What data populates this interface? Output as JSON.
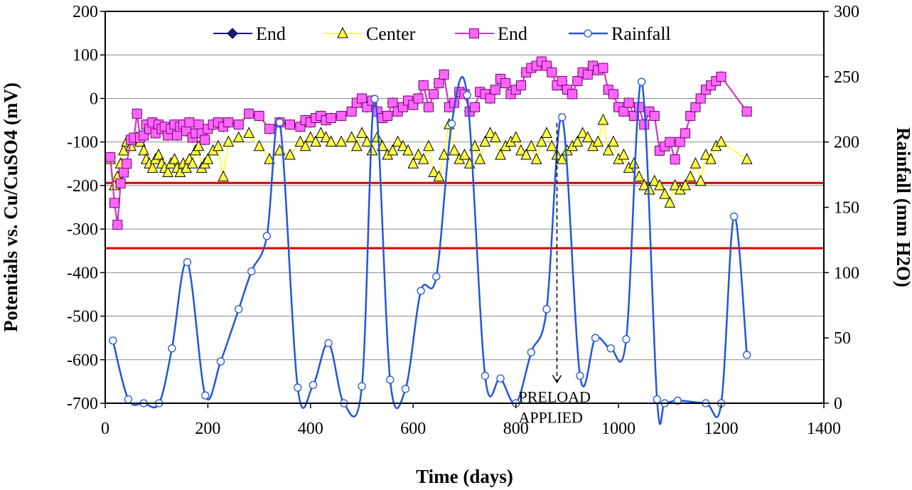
{
  "chart_data": {
    "type": "line",
    "title": "",
    "xlabel": "Time (days)",
    "ylabel_left": "Potentials vs. Cu/CuSO4 (mV)",
    "ylabel_right": "Rainfall (mm H2O)",
    "xlim": [
      0,
      1400
    ],
    "xticks": [
      0,
      200,
      400,
      600,
      800,
      1000,
      1200,
      1400
    ],
    "ylim_left": [
      -700,
      200
    ],
    "yticks_left": [
      200,
      100,
      0,
      -100,
      -200,
      -300,
      -400,
      -500,
      -600,
      -700
    ],
    "ylim_right": [
      0,
      300
    ],
    "yticks_right": [
      300,
      250,
      200,
      150,
      100,
      50,
      0
    ],
    "grid": "horizontal",
    "legend_position": "top",
    "reference_lines_mV": [
      -194,
      -344
    ],
    "colors": {
      "end1": "#1c1c7a",
      "center": "#ffff44",
      "end2": "#e030d0",
      "end2_fill": "#ff66ff",
      "rainfall": "#2255dd",
      "reference": "#dd0000"
    },
    "annotation": {
      "line1": "PRELOAD",
      "line2": "APPLIED",
      "x": 880,
      "from_rain_mm": 219,
      "to_rain_mm": 16
    },
    "series": [
      {
        "name": "End",
        "axis": "left",
        "marker": "diamond",
        "x": [
          10,
          18,
          24,
          30,
          36,
          42,
          50,
          56,
          62,
          68,
          75,
          80,
          86,
          92,
          98,
          104,
          110,
          116,
          122,
          128,
          135,
          140,
          146,
          152,
          158,
          164,
          170,
          176,
          182,
          188,
          194,
          200,
          210,
          220,
          230,
          240,
          260,
          280,
          300,
          320,
          340,
          360,
          380,
          390,
          400,
          410,
          420,
          430,
          440,
          460,
          480,
          490,
          500,
          510,
          520,
          530,
          540,
          550,
          560,
          570,
          580,
          590,
          600,
          610,
          620,
          630,
          640,
          650,
          660,
          670,
          680,
          690,
          700,
          710,
          720,
          730,
          740,
          750,
          760,
          770,
          780,
          790,
          800,
          810,
          820,
          830,
          840,
          850,
          860,
          870,
          880,
          890,
          900,
          910,
          920,
          930,
          940,
          950,
          960,
          970,
          980,
          990,
          1000,
          1010,
          1020,
          1030,
          1040,
          1050,
          1060,
          1070,
          1080,
          1090,
          1100,
          1110,
          1120,
          1130,
          1140,
          1150,
          1160,
          1170,
          1180,
          1190,
          1200,
          1250
        ],
        "values": [
          -135,
          -240,
          -290,
          -195,
          -170,
          -150,
          -95,
          -90,
          -35,
          -90,
          -85,
          -60,
          -70,
          -55,
          -80,
          -60,
          -70,
          -65,
          -85,
          -70,
          -60,
          -85,
          -65,
          -60,
          -75,
          -55,
          -90,
          -80,
          -60,
          -80,
          -95,
          -70,
          -60,
          -55,
          -65,
          -55,
          -60,
          -35,
          -40,
          -70,
          -55,
          -60,
          -65,
          -50,
          -55,
          -45,
          -40,
          -50,
          -45,
          -40,
          -30,
          -10,
          0,
          -20,
          -5,
          -30,
          -45,
          -40,
          -10,
          -30,
          -20,
          -5,
          -15,
          0,
          30,
          -20,
          10,
          35,
          55,
          -20,
          -10,
          15,
          10,
          -30,
          -20,
          15,
          10,
          0,
          20,
          45,
          35,
          10,
          20,
          30,
          60,
          70,
          75,
          85,
          75,
          60,
          30,
          40,
          20,
          10,
          40,
          60,
          55,
          75,
          65,
          70,
          20,
          10,
          -20,
          -30,
          -10,
          -40,
          -20,
          -60,
          -30,
          -40,
          -120,
          -110,
          -100,
          -140,
          -100,
          -80,
          -40,
          -20,
          0,
          20,
          30,
          40,
          50,
          -30
        ]
      },
      {
        "name": "Center",
        "axis": "left",
        "marker": "triangle",
        "x": [
          10,
          18,
          24,
          30,
          36,
          42,
          50,
          56,
          62,
          68,
          75,
          80,
          86,
          92,
          98,
          104,
          110,
          116,
          122,
          128,
          135,
          140,
          146,
          152,
          158,
          164,
          170,
          176,
          182,
          188,
          194,
          200,
          210,
          220,
          230,
          240,
          260,
          280,
          300,
          320,
          340,
          360,
          380,
          390,
          400,
          410,
          420,
          430,
          440,
          460,
          480,
          490,
          500,
          510,
          520,
          530,
          540,
          550,
          560,
          570,
          580,
          590,
          600,
          610,
          620,
          630,
          640,
          650,
          660,
          670,
          680,
          690,
          700,
          710,
          720,
          730,
          740,
          750,
          760,
          770,
          780,
          790,
          800,
          810,
          820,
          830,
          840,
          850,
          860,
          870,
          880,
          890,
          900,
          910,
          920,
          930,
          940,
          950,
          960,
          970,
          980,
          990,
          1000,
          1010,
          1020,
          1030,
          1040,
          1050,
          1060,
          1070,
          1080,
          1090,
          1100,
          1110,
          1120,
          1130,
          1140,
          1150,
          1160,
          1170,
          1180,
          1190,
          1200,
          1250
        ],
        "values": [
          -140,
          -200,
          -180,
          -150,
          -120,
          -100,
          -110,
          -95,
          -90,
          -100,
          -120,
          -140,
          -150,
          -160,
          -140,
          -130,
          -150,
          -160,
          -170,
          -150,
          -140,
          -160,
          -170,
          -150,
          -160,
          -140,
          -150,
          -120,
          -110,
          -160,
          -150,
          -140,
          -120,
          -110,
          -180,
          -100,
          -90,
          -80,
          -110,
          -140,
          -120,
          -130,
          -100,
          -110,
          -90,
          -100,
          -80,
          -90,
          -100,
          -100,
          -90,
          -110,
          -80,
          -100,
          -120,
          -90,
          -110,
          -130,
          -120,
          -100,
          -110,
          -120,
          -150,
          -130,
          -140,
          -110,
          -170,
          -180,
          -130,
          -60,
          -120,
          -140,
          -130,
          -150,
          -110,
          -140,
          -100,
          -80,
          -90,
          -130,
          -110,
          -100,
          -90,
          -120,
          -130,
          -110,
          -140,
          -100,
          -80,
          -110,
          -130,
          -140,
          -120,
          -110,
          -100,
          -80,
          -90,
          -110,
          -100,
          -50,
          -120,
          -100,
          -140,
          -130,
          -160,
          -150,
          -180,
          -200,
          -210,
          -190,
          -200,
          -220,
          -240,
          -200,
          -210,
          -200,
          -180,
          -150,
          -190,
          -130,
          -140,
          -110,
          -100,
          -140
        ]
      },
      {
        "name": "End",
        "axis": "left",
        "marker": "square",
        "x": [
          10,
          18,
          24,
          30,
          36,
          42,
          50,
          56,
          62,
          68,
          75,
          80,
          86,
          92,
          98,
          104,
          110,
          116,
          122,
          128,
          135,
          140,
          146,
          152,
          158,
          164,
          170,
          176,
          182,
          188,
          194,
          200,
          210,
          220,
          230,
          240,
          260,
          280,
          300,
          320,
          340,
          360,
          380,
          390,
          400,
          410,
          420,
          430,
          440,
          460,
          480,
          490,
          500,
          510,
          520,
          530,
          540,
          550,
          560,
          570,
          580,
          590,
          600,
          610,
          620,
          630,
          640,
          650,
          660,
          670,
          680,
          690,
          700,
          710,
          720,
          730,
          740,
          750,
          760,
          770,
          780,
          790,
          800,
          810,
          820,
          830,
          840,
          850,
          860,
          870,
          880,
          890,
          900,
          910,
          920,
          930,
          940,
          950,
          960,
          970,
          980,
          990,
          1000,
          1010,
          1020,
          1030,
          1040,
          1050,
          1060,
          1070,
          1080,
          1090,
          1100,
          1110,
          1120,
          1130,
          1140,
          1150,
          1160,
          1170,
          1180,
          1190,
          1200,
          1250
        ],
        "values": [
          -135,
          -240,
          -290,
          -195,
          -170,
          -150,
          -95,
          -90,
          -35,
          -90,
          -85,
          -60,
          -70,
          -55,
          -80,
          -60,
          -70,
          -65,
          -85,
          -70,
          -60,
          -85,
          -65,
          -60,
          -75,
          -55,
          -90,
          -80,
          -60,
          -80,
          -95,
          -70,
          -60,
          -55,
          -65,
          -55,
          -60,
          -35,
          -40,
          -70,
          -55,
          -60,
          -65,
          -50,
          -55,
          -45,
          -40,
          -50,
          -45,
          -40,
          -30,
          -10,
          0,
          -20,
          -5,
          -30,
          -45,
          -40,
          -10,
          -30,
          -20,
          -5,
          -15,
          0,
          30,
          -20,
          10,
          35,
          55,
          -20,
          -10,
          15,
          10,
          -30,
          -20,
          15,
          10,
          0,
          20,
          45,
          35,
          10,
          20,
          30,
          60,
          70,
          75,
          85,
          75,
          60,
          30,
          40,
          20,
          10,
          40,
          60,
          55,
          75,
          65,
          70,
          20,
          10,
          -20,
          -30,
          -10,
          -40,
          -20,
          -60,
          -30,
          -40,
          -120,
          -110,
          -100,
          -140,
          -100,
          -80,
          -40,
          -20,
          0,
          20,
          30,
          40,
          50,
          -30
        ]
      },
      {
        "name": "Rainfall",
        "axis": "right",
        "marker": "circle",
        "x": [
          15,
          45,
          75,
          105,
          130,
          160,
          195,
          225,
          260,
          285,
          315,
          340,
          375,
          405,
          435,
          465,
          500,
          525,
          555,
          585,
          615,
          645,
          675,
          705,
          740,
          770,
          800,
          830,
          860,
          890,
          925,
          955,
          985,
          1015,
          1045,
          1075,
          1090,
          1115,
          1170,
          1200,
          1225,
          1250
        ],
        "values": [
          48,
          3,
          0,
          0,
          42,
          108,
          6,
          32,
          72,
          101,
          128,
          215,
          12,
          14,
          46,
          0,
          13,
          233,
          18,
          11,
          86,
          97,
          214,
          236,
          21,
          19,
          0,
          39,
          72,
          219,
          21,
          50,
          42,
          49,
          246,
          3,
          0,
          2,
          0,
          0,
          143,
          37
        ]
      }
    ]
  }
}
